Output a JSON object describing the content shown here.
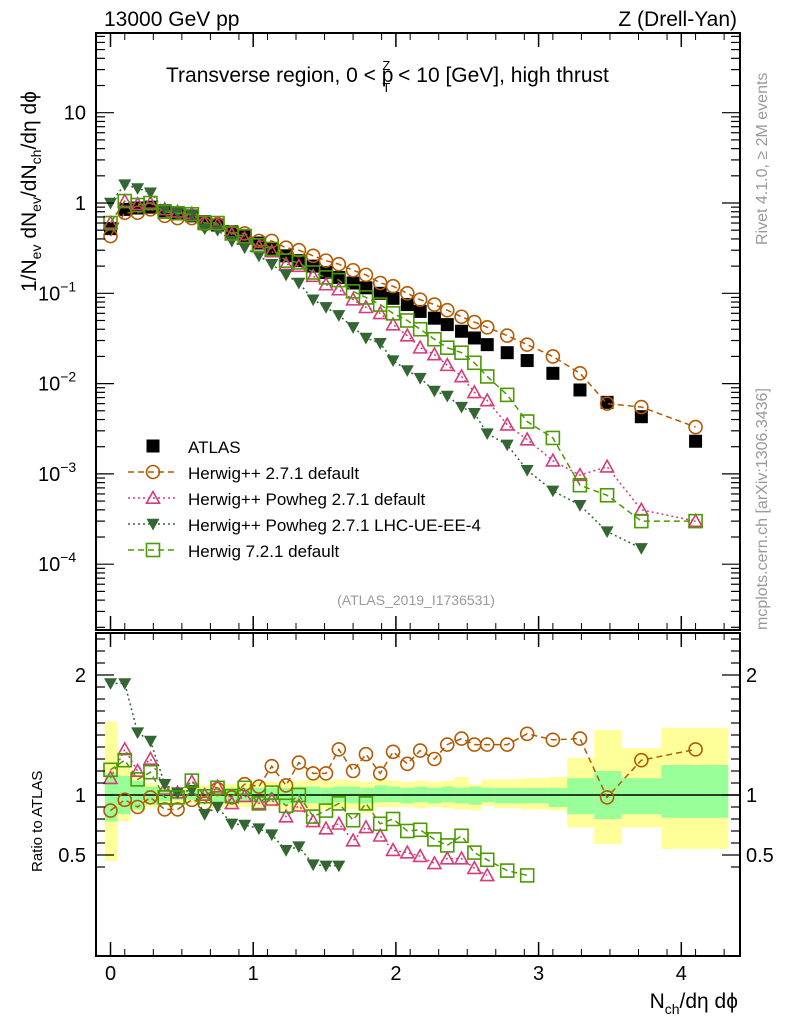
{
  "header": {
    "left_label": "13000 GeV pp",
    "right_label": "Z (Drell-Yan)"
  },
  "side_labels": {
    "rivet": "Rivet 4.1.0, ≥ 2M events",
    "mcplots": "mcplots.cern.ch [arXiv:1306.3436]"
  },
  "chart_data": [
    {
      "type": "scatter",
      "panel": "main",
      "title": "Transverse region, 0 < p_T^Z < 10 [GeV], high thrust",
      "title_parts": {
        "pre": "Transverse region, 0 < p",
        "sup": "Z",
        "sub": "T",
        "post": " < 10 [GeV], high thrust"
      },
      "ylabel": "1/N_ev dN_ev/dN_ch/dη dϕ",
      "ylabel_parts": {
        "a": "1/N",
        "a_sub": "ev",
        "b": " dN",
        "b_sub": "ev",
        "c": "/dN",
        "c_sub": "ch",
        "d": "/dη dϕ"
      },
      "yscale": "log",
      "ylim": [
        2e-05,
        80
      ],
      "xlim": [
        -0.1,
        4.35
      ],
      "ytick_labels": [
        {
          "value": 10,
          "label": "10",
          "exp": ""
        },
        {
          "value": 1,
          "label": "1",
          "exp": ""
        },
        {
          "value": 0.1,
          "label": "10",
          "exp": "−1"
        },
        {
          "value": 0.01,
          "label": "10",
          "exp": "−2"
        },
        {
          "value": 0.001,
          "label": "10",
          "exp": "−3"
        },
        {
          "value": 0.0001,
          "label": "10",
          "exp": "−4"
        }
      ],
      "legend_position": "bottom-left",
      "analysis_tag": "(ATLAS_2019_I1736531)",
      "x": [
        0.0,
        0.1,
        0.19,
        0.28,
        0.38,
        0.47,
        0.57,
        0.66,
        0.75,
        0.85,
        0.94,
        1.04,
        1.13,
        1.23,
        1.32,
        1.42,
        1.51,
        1.6,
        1.7,
        1.79,
        1.89,
        1.98,
        2.08,
        2.17,
        2.27,
        2.36,
        2.46,
        2.55,
        2.64,
        2.78,
        2.92,
        3.1,
        3.29,
        3.48,
        3.72,
        4.1
      ],
      "series": [
        {
          "name": "ATLAS",
          "style": "data",
          "color": "#000000",
          "marker": "filled-square",
          "values": [
            0.52,
            0.85,
            0.88,
            0.9,
            0.82,
            0.78,
            0.72,
            0.62,
            0.57,
            0.48,
            0.42,
            0.36,
            0.31,
            0.26,
            0.23,
            0.2,
            0.17,
            0.15,
            0.13,
            0.115,
            0.1,
            0.088,
            0.075,
            0.063,
            0.053,
            0.045,
            0.038,
            0.032,
            0.027,
            0.022,
            0.018,
            0.013,
            0.0085,
            0.0062,
            0.0043,
            0.0023
          ]
        },
        {
          "name": "Herwig++ 2.7.1 default",
          "style": "dashed",
          "color": "#b35900",
          "marker": "open-circle",
          "values": [
            0.43,
            0.78,
            0.78,
            0.85,
            0.72,
            0.68,
            0.68,
            0.58,
            0.58,
            0.47,
            0.46,
            0.38,
            0.38,
            0.32,
            0.3,
            0.26,
            0.23,
            0.21,
            0.18,
            0.16,
            0.13,
            0.12,
            0.1,
            0.085,
            0.075,
            0.065,
            0.055,
            0.048,
            0.042,
            0.034,
            0.027,
            0.02,
            0.013,
            0.006,
            0.0055,
            0.0033
          ]
        },
        {
          "name": "Herwig++ Powheg 2.7.1 default",
          "style": "dotted",
          "color": "#d63b7a",
          "marker": "open-triangle-up",
          "values": [
            0.6,
            1.05,
            0.97,
            1.0,
            0.85,
            0.8,
            0.76,
            0.6,
            0.58,
            0.45,
            0.4,
            0.33,
            0.29,
            0.21,
            0.2,
            0.155,
            0.125,
            0.11,
            0.085,
            0.07,
            0.06,
            0.045,
            0.034,
            0.025,
            0.021,
            0.016,
            0.012,
            0.008,
            0.0065,
            0.0035,
            0.0024,
            0.0014,
            0.00097,
            0.0012,
            0.0004,
            0.0003
          ]
        },
        {
          "name": "Herwig++ Powheg 2.7.1 LHC-UE-EE-4",
          "style": "dotted",
          "color": "#336633",
          "marker": "filled-triangle-down",
          "values": [
            1.0,
            1.6,
            1.45,
            1.3,
            0.85,
            0.78,
            0.74,
            0.52,
            0.5,
            0.38,
            0.32,
            0.26,
            0.21,
            0.16,
            0.13,
            0.085,
            0.07,
            0.057,
            0.042,
            0.032,
            0.028,
            0.018,
            0.014,
            0.0115,
            0.0083,
            0.0073,
            0.0055,
            0.0047,
            0.0028,
            0.0021,
            0.0011,
            0.00065,
            0.00045,
            0.00023,
            0.00015,
            null
          ]
        },
        {
          "name": "Herwig 7.2.1 default",
          "style": "dashed",
          "color": "#4c9900",
          "marker": "open-square",
          "values": [
            0.6,
            1.05,
            0.95,
            1.0,
            0.8,
            0.77,
            0.75,
            0.6,
            0.6,
            0.46,
            0.43,
            0.34,
            0.31,
            0.23,
            0.22,
            0.17,
            0.15,
            0.14,
            0.105,
            0.09,
            0.075,
            0.06,
            0.05,
            0.04,
            0.031,
            0.025,
            0.022,
            0.017,
            0.012,
            0.0075,
            0.0038,
            0.0025,
            0.00075,
            0.00058,
            0.0003,
            0.0003
          ]
        }
      ]
    },
    {
      "type": "scatter",
      "panel": "ratio",
      "ylabel": "Ratio to ATLAS",
      "xlabel": "N_ch/dη dϕ",
      "xlabel_parts": {
        "a": "N",
        "a_sub": "ch",
        "b": "/dη dϕ"
      },
      "ylim": [
        0.35,
        2.3
      ],
      "xlim": [
        -0.1,
        4.35
      ],
      "ytick_labels": [
        {
          "value": 2,
          "label": "2"
        },
        {
          "value": 1,
          "label": "1"
        },
        {
          "value": 0.5,
          "label": "0.5"
        }
      ],
      "xtick_labels": [
        {
          "value": 0,
          "label": "0"
        },
        {
          "value": 1,
          "label": "1"
        },
        {
          "value": 2,
          "label": "2"
        },
        {
          "value": 3,
          "label": "3"
        },
        {
          "value": 4,
          "label": "4"
        }
      ],
      "reference_line": 1,
      "bands": {
        "edges": [
          -0.04,
          0.05,
          0.14,
          0.24,
          0.33,
          0.43,
          0.52,
          0.61,
          0.71,
          0.8,
          0.9,
          0.99,
          1.09,
          1.18,
          1.28,
          1.37,
          1.47,
          1.56,
          1.66,
          1.75,
          1.85,
          1.94,
          2.03,
          2.13,
          2.22,
          2.32,
          2.41,
          2.51,
          2.6,
          2.69,
          2.88,
          3.07,
          3.2,
          3.39,
          3.58,
          3.86,
          4.33
        ],
        "stat_color": "#99ff99",
        "syst_color": "#ffff99",
        "stat_lo": [
          0.78,
          0.84,
          0.88,
          0.92,
          0.95,
          0.96,
          0.96,
          0.95,
          0.94,
          0.94,
          0.94,
          0.94,
          0.94,
          0.93,
          0.93,
          0.93,
          0.93,
          0.94,
          0.93,
          0.93,
          0.94,
          0.94,
          0.93,
          0.94,
          0.93,
          0.94,
          0.93,
          0.92,
          0.94,
          0.93,
          0.93,
          0.9,
          0.84,
          0.8,
          0.84,
          0.81
        ],
        "stat_hi": [
          1.18,
          1.16,
          1.12,
          1.07,
          1.05,
          1.04,
          1.04,
          1.05,
          1.05,
          1.06,
          1.06,
          1.06,
          1.06,
          1.06,
          1.07,
          1.07,
          1.06,
          1.07,
          1.07,
          1.06,
          1.08,
          1.07,
          1.06,
          1.07,
          1.06,
          1.07,
          1.06,
          1.07,
          1.06,
          1.06,
          1.06,
          1.06,
          1.14,
          1.2,
          1.14,
          1.25
        ],
        "syst_lo": [
          0.45,
          0.78,
          0.86,
          0.9,
          0.92,
          0.93,
          0.93,
          0.92,
          0.89,
          0.9,
          0.9,
          0.9,
          0.9,
          0.88,
          0.87,
          0.88,
          0.88,
          0.89,
          0.88,
          0.85,
          0.9,
          0.9,
          0.9,
          0.89,
          0.9,
          0.89,
          0.88,
          0.87,
          0.91,
          0.89,
          0.88,
          0.87,
          0.73,
          0.59,
          0.73,
          0.55
        ],
        "syst_hi": [
          1.61,
          1.25,
          1.17,
          1.1,
          1.07,
          1.06,
          1.06,
          1.08,
          1.09,
          1.09,
          1.1,
          1.11,
          1.11,
          1.11,
          1.12,
          1.13,
          1.12,
          1.13,
          1.12,
          1.11,
          1.13,
          1.12,
          1.11,
          1.12,
          1.11,
          1.12,
          1.15,
          1.09,
          1.13,
          1.13,
          1.14,
          1.15,
          1.31,
          1.54,
          1.39,
          1.56
        ]
      },
      "x": [
        0.0,
        0.1,
        0.19,
        0.28,
        0.38,
        0.47,
        0.57,
        0.66,
        0.75,
        0.85,
        0.94,
        1.04,
        1.13,
        1.23,
        1.32,
        1.42,
        1.51,
        1.6,
        1.7,
        1.79,
        1.89,
        1.98,
        2.08,
        2.17,
        2.27,
        2.36,
        2.46,
        2.55,
        2.64,
        2.78,
        2.92,
        3.1,
        3.29,
        3.48,
        3.72,
        4.1
      ],
      "series": [
        {
          "name": "Herwig++ 2.7.1 default",
          "style": "dashed",
          "color": "#b35900",
          "marker": "open-circle",
          "values": [
            0.87,
            0.96,
            0.9,
            0.98,
            0.88,
            0.88,
            0.96,
            0.93,
            1.05,
            0.98,
            1.09,
            1.07,
            1.24,
            1.08,
            1.27,
            1.18,
            1.18,
            1.38,
            1.2,
            1.34,
            1.18,
            1.36,
            1.26,
            1.37,
            1.3,
            1.42,
            1.47,
            1.42,
            1.42,
            1.42,
            1.51,
            1.46,
            1.47,
            0.98,
            1.29,
            1.38
          ]
        },
        {
          "name": "Herwig++ Powheg 2.7.1 default",
          "style": "dotted",
          "color": "#d63b7a",
          "marker": "open-triangle-up",
          "values": [
            1.14,
            1.38,
            1.2,
            1.3,
            1.05,
            1.02,
            1.11,
            1.0,
            1.07,
            0.93,
            0.99,
            0.93,
            0.96,
            0.82,
            0.91,
            0.78,
            0.72,
            0.76,
            0.62,
            0.73,
            0.66,
            0.54,
            0.52,
            0.49,
            0.43,
            0.47,
            0.47,
            0.39,
            0.33,
            null,
            null,
            null,
            null,
            null,
            null,
            null
          ]
        },
        {
          "name": "Herwig++ Powheg 2.7.1 LHC-UE-EE-4",
          "style": "dotted",
          "color": "#336633",
          "marker": "filled-triangle-down",
          "values": [
            1.93,
            1.93,
            1.52,
            1.45,
            1.09,
            1.02,
            1.04,
            0.84,
            0.9,
            0.76,
            0.75,
            0.72,
            0.67,
            0.54,
            0.57,
            0.42,
            0.41,
            0.41,
            null,
            null,
            null,
            null,
            null,
            null,
            null,
            null,
            null,
            null,
            null,
            null,
            null,
            null,
            null,
            null,
            null,
            null
          ]
        },
        {
          "name": "Herwig 7.2.1 default",
          "style": "dashed",
          "color": "#4c9900",
          "marker": "open-square",
          "values": [
            1.21,
            1.29,
            1.13,
            1.19,
            0.98,
            0.98,
            1.12,
            0.99,
            1.06,
            0.99,
            1.06,
            0.93,
            1.02,
            0.91,
            1.0,
            0.82,
            0.87,
            0.93,
            0.79,
            0.93,
            0.76,
            0.8,
            0.7,
            0.71,
            0.63,
            0.58,
            0.66,
            0.52,
            0.46,
            0.37,
            0.33,
            null,
            null,
            null,
            null,
            null
          ]
        }
      ]
    }
  ]
}
